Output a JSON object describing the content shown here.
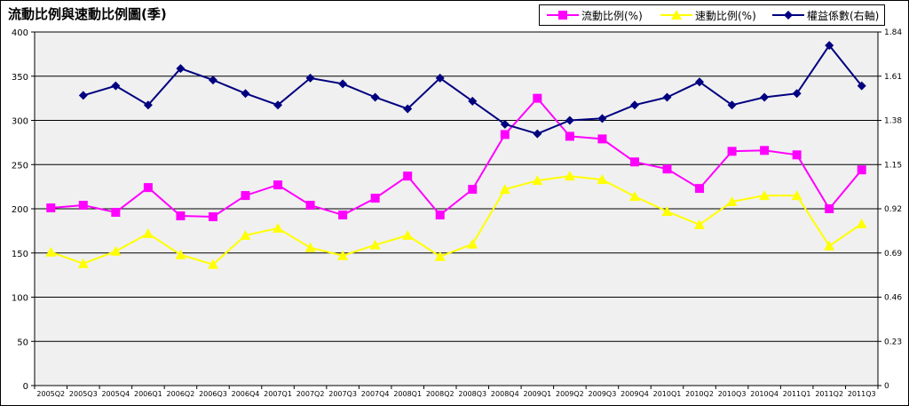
{
  "chart_data": {
    "type": "line",
    "title": "流動比例與速動比例圖(季)",
    "categories": [
      "2005Q2",
      "2005Q3",
      "2005Q4",
      "2006Q1",
      "2006Q2",
      "2006Q3",
      "2006Q4",
      "2007Q1",
      "2007Q2",
      "2007Q3",
      "2007Q4",
      "2008Q1",
      "2008Q2",
      "2008Q3",
      "2008Q4",
      "2009Q1",
      "2009Q2",
      "2009Q3",
      "2009Q4",
      "2010Q1",
      "2010Q2",
      "2010Q3",
      "2010Q4",
      "2011Q1",
      "2011Q2",
      "2011Q3"
    ],
    "y_left": {
      "ylim": [
        0,
        400
      ],
      "ticks": [
        "0",
        "50",
        "100",
        "150",
        "200",
        "250",
        "300",
        "350",
        "400"
      ]
    },
    "y_right": {
      "ylim": [
        0,
        1.84
      ],
      "ticks": [
        "0",
        "0.23",
        "0.46",
        "0.69",
        "0.92",
        "1.15",
        "1.38",
        "1.61",
        "1.84"
      ]
    },
    "grid": "horizontal",
    "legend_position": "top-right",
    "series": [
      {
        "name": "流動比例(%)",
        "axis": "left",
        "color": "#ff00ff",
        "marker": "square",
        "values": [
          201,
          204,
          196,
          224,
          192,
          191,
          215,
          227,
          204,
          193,
          212,
          237,
          193,
          222,
          284,
          325,
          282,
          279,
          253,
          245,
          223,
          265,
          266,
          261,
          200,
          244
        ]
      },
      {
        "name": "速動比例(%)",
        "axis": "left",
        "color": "#ffff00",
        "marker": "triangle",
        "values": [
          151,
          138,
          152,
          172,
          148,
          137,
          170,
          178,
          156,
          147,
          159,
          170,
          146,
          160,
          222,
          232,
          237,
          233,
          214,
          197,
          182,
          208,
          215,
          215,
          158,
          183
        ]
      },
      {
        "name": "權益係數(右軸)",
        "axis": "right",
        "color": "#000080",
        "marker": "diamond",
        "values": [
          null,
          1.51,
          1.56,
          1.46,
          1.65,
          1.59,
          1.52,
          1.46,
          1.6,
          1.57,
          1.5,
          1.44,
          1.6,
          1.48,
          1.36,
          1.31,
          1.38,
          1.39,
          1.46,
          1.5,
          1.58,
          1.46,
          1.5,
          1.52,
          1.77,
          1.56
        ]
      }
    ]
  }
}
